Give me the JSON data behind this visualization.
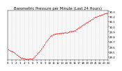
{
  "title": "Barometric Pressure per Minute (Last 24 Hours)",
  "background_color": "#ffffff",
  "plot_bg_color": "#f8f8f8",
  "grid_color": "#cccccc",
  "line_color": "#ff0000",
  "title_fontsize": 3.8,
  "tick_fontsize": 2.8,
  "ylim": [
    29.35,
    30.32
  ],
  "yticks": [
    29.4,
    29.5,
    29.6,
    29.7,
    29.8,
    29.9,
    30.0,
    30.1,
    30.2,
    30.3
  ],
  "num_points": 1440,
  "key_x": [
    0,
    80,
    180,
    260,
    360,
    480,
    560,
    620,
    680,
    760,
    840,
    960,
    1100,
    1250,
    1380,
    1439
  ],
  "key_y": [
    29.55,
    29.5,
    29.39,
    29.36,
    29.37,
    29.56,
    29.72,
    29.82,
    29.86,
    29.87,
    29.88,
    29.92,
    30.05,
    30.18,
    30.25,
    30.27
  ],
  "x_tick_positions": [
    0,
    60,
    120,
    180,
    240,
    300,
    360,
    420,
    480,
    540,
    600,
    660,
    720,
    780,
    840,
    900,
    960,
    1020,
    1080,
    1140,
    1200,
    1260,
    1320,
    1380,
    1439
  ],
  "x_tick_labels": [
    "0",
    "1",
    "2",
    "3",
    "4",
    "5",
    "6",
    "7",
    "8",
    "9",
    "10",
    "11",
    "12",
    "13",
    "14",
    "15",
    "16",
    "17",
    "18",
    "19",
    "20",
    "21",
    "22",
    "23",
    "24"
  ]
}
